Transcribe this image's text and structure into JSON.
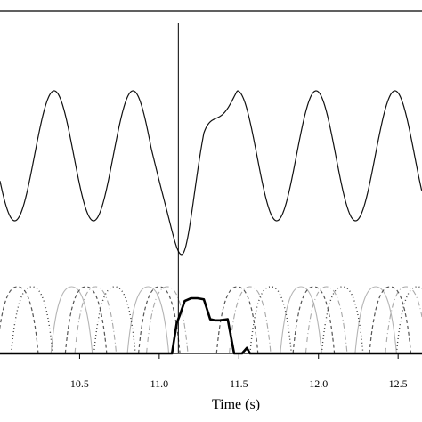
{
  "chart_data": {
    "type": "line",
    "title": "",
    "xlabel": "Time (s)",
    "ylabel": "",
    "xlim": [
      10.0,
      12.65
    ],
    "x_ticks": [
      10.5,
      11.0,
      11.5,
      12.0,
      12.5
    ],
    "x_tick_labels": [
      "10.5",
      "11.0",
      "11.5",
      "12.0",
      "12.5"
    ],
    "grid": false,
    "legend": "none",
    "event_line_x": 11.12,
    "signal": {
      "period_s": 0.495,
      "amplitude": 1.0,
      "peaks_x": [
        10.34,
        10.84,
        11.99
      ],
      "troughs_x": [
        10.59,
        11.07,
        12.24
      ],
      "onset_peak_x": 11.49,
      "anomalous_trough_x": 11.15,
      "anomalous_trough_value": -1.55
    },
    "series": [
      {
        "style": "solid-bold-black",
        "x": [
          10.0,
          11.08,
          11.11,
          11.13,
          11.16,
          11.2,
          11.24,
          11.28,
          11.32,
          11.35,
          11.38,
          11.43,
          11.47,
          11.5,
          11.52,
          11.55,
          11.57,
          11.6,
          12.65
        ],
        "values": [
          0.0,
          0.0,
          0.55,
          0.7,
          0.95,
          1.0,
          1.0,
          0.98,
          0.62,
          0.6,
          0.6,
          0.62,
          0.0,
          0.0,
          0.0,
          0.1,
          0.0,
          0.0,
          0.0
        ]
      }
    ],
    "background_bands": {
      "gray_solid": [
        10.45,
        10.93,
        11.37,
        11.89,
        12.36
      ],
      "gray_dashdot": [
        10.6,
        11.05,
        11.57,
        12.05,
        12.55
      ],
      "dark_dashed": [
        10.11,
        10.54,
        11.0,
        11.49,
        11.97,
        12.45
      ],
      "dark_dotted": [
        10.2,
        10.72,
        11.7,
        12.15,
        12.62
      ]
    }
  }
}
